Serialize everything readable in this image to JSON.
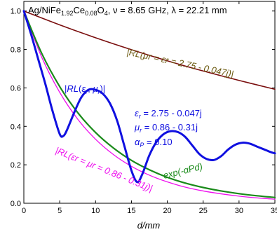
{
  "chart_data": {
    "type": "line",
    "title": "Ag/NiFe1.92Ce0.08O4, ν = 8.65 GHz, λ = 22.21 mm",
    "title_parts": {
      "material_base": "Ag/NiFe",
      "sub1": "1.92",
      "mid": "Ce",
      "sub2": "0.08",
      "o": "O",
      "sub3": "4",
      "rest": ", ν = 8.65 GHz, λ = 22.21 mm"
    },
    "xlabel": "d/mm",
    "ylabel": "",
    "xlim": [
      0,
      35
    ],
    "ylim": [
      0,
      1.05
    ],
    "x_ticks": [
      "0",
      "5",
      "10",
      "15",
      "20",
      "25",
      "30",
      "35"
    ],
    "y_ticks": [
      "0.0",
      "0.2",
      "0.4",
      "0.6",
      "0.8",
      "1.0"
    ],
    "grid": false,
    "series": [
      {
        "name": "|RL(εr, μr)|",
        "color": "#1010e0",
        "x": [
          0,
          1,
          2,
          3,
          4,
          5,
          5.5,
          6,
          7,
          8,
          9,
          10,
          11,
          12,
          13,
          14,
          15,
          15.8,
          16.5,
          17.5,
          18.5,
          19.5,
          20.5,
          21.5,
          22.5,
          23.5,
          24.5,
          25.5,
          26.5,
          27.5,
          28.5,
          29.5,
          30.5,
          31.5,
          32.5,
          33.5,
          34.5,
          35
        ],
        "y": [
          1.0,
          0.88,
          0.75,
          0.62,
          0.48,
          0.36,
          0.35,
          0.38,
          0.47,
          0.55,
          0.59,
          0.59,
          0.57,
          0.52,
          0.43,
          0.3,
          0.17,
          0.11,
          0.15,
          0.25,
          0.32,
          0.36,
          0.375,
          0.37,
          0.345,
          0.3,
          0.255,
          0.23,
          0.225,
          0.245,
          0.28,
          0.305,
          0.315,
          0.31,
          0.295,
          0.28,
          0.265,
          0.26
        ]
      },
      {
        "name": "|RL(μr = εr = 2.75 - 0.047j)|",
        "color": "#7a0e0e",
        "x": [
          0,
          5,
          10,
          15,
          20,
          25,
          30,
          35
        ],
        "y": [
          1.0,
          0.928,
          0.861,
          0.799,
          0.741,
          0.688,
          0.639,
          0.593
        ]
      },
      {
        "name": "exp(-αPd)",
        "color": "#1a8a1a",
        "x": [
          0,
          2.5,
          5,
          7.5,
          10,
          12.5,
          15,
          17.5,
          20,
          22.5,
          25,
          27.5,
          30,
          32.5,
          35
        ],
        "y": [
          1.0,
          0.779,
          0.607,
          0.472,
          0.368,
          0.287,
          0.223,
          0.174,
          0.135,
          0.105,
          0.082,
          0.064,
          0.05,
          0.039,
          0.03
        ]
      },
      {
        "name": "|RL(εr = μr = 0.86 - 0.31j)|",
        "color": "#ee10ee",
        "x": [
          0,
          2.5,
          5,
          7.5,
          10,
          12.5,
          15,
          17.5,
          20,
          22.5,
          25,
          27.5,
          30,
          32.5,
          35
        ],
        "y": [
          1.0,
          0.759,
          0.577,
          0.438,
          0.333,
          0.253,
          0.192,
          0.146,
          0.111,
          0.084,
          0.064,
          0.049,
          0.037,
          0.028,
          0.021
        ]
      }
    ],
    "annotations": {
      "rl_main": {
        "pre": "|",
        "italic1": "RL",
        "mid": "(",
        "eps": "ε",
        "eps_sub": "r",
        "comma": ", ",
        "mu": "μ",
        "mu_sub": "r",
        "post": ")|"
      },
      "rl_equal": "|RL(μr = εr = 2.75 - 0.047j)|",
      "rl_magnetic": "|RL(εr = μr = 0.86 - 0.31j)|",
      "exp": "exp(-αPd)",
      "eps_line": {
        "sym": "ε",
        "sub": "r",
        "val": " = 2.75 - 0.047j"
      },
      "mu_line": {
        "sym": "μ",
        "sub": "r",
        "val": " = 0.86 - 0.31j"
      },
      "alpha_line": {
        "sym": "α",
        "sub": "P",
        "val": " = 0.10"
      }
    }
  }
}
